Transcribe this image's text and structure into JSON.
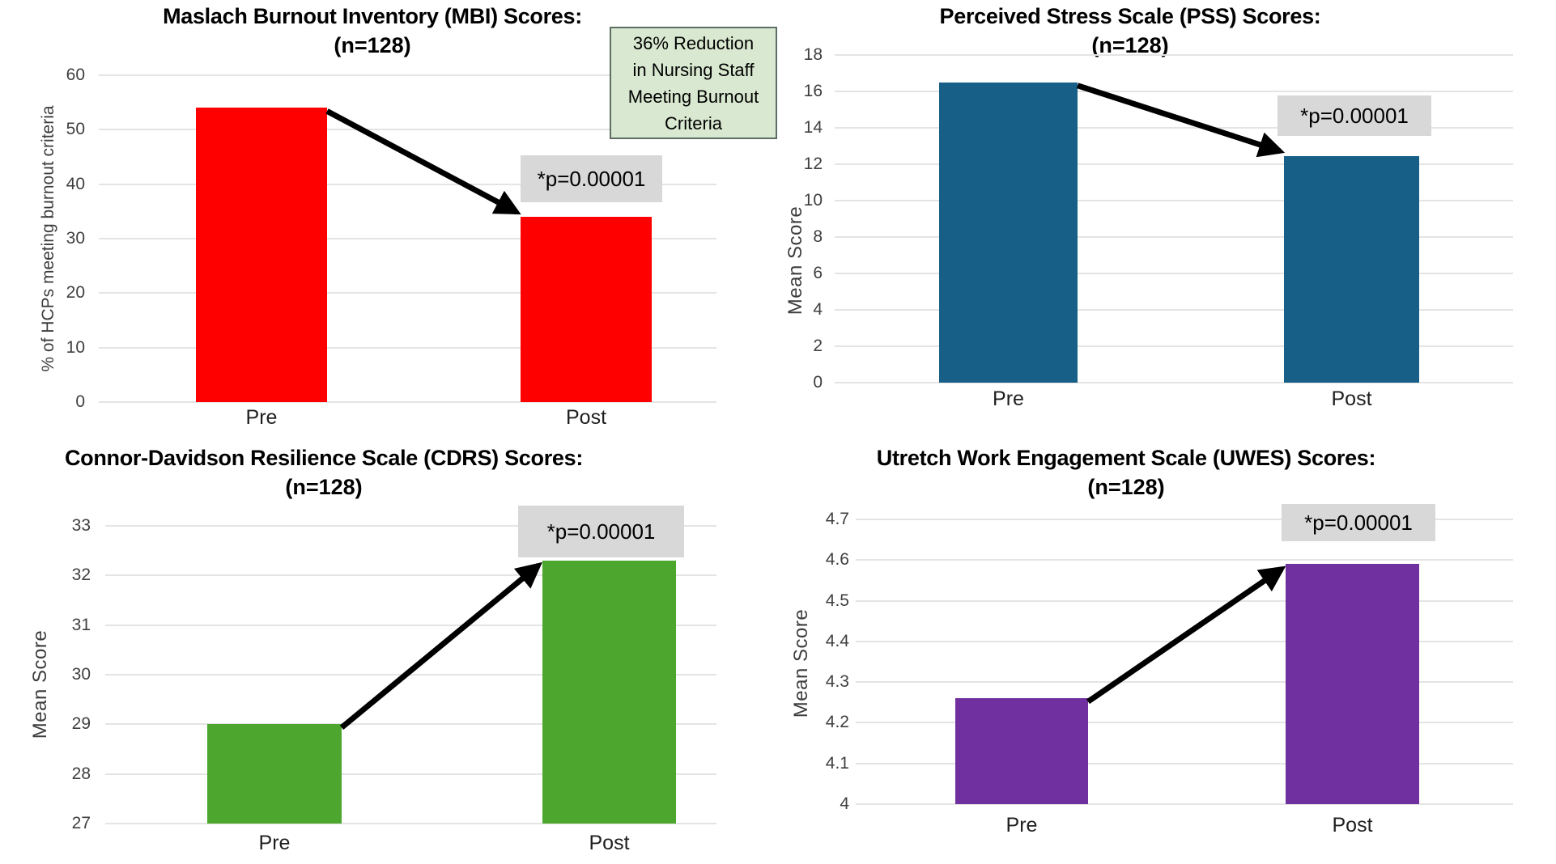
{
  "style": {
    "background": "#ffffff",
    "gridline_color": "#e4e4e4",
    "tick_color": "#3f3f3f",
    "category_color": "#1f1f1f",
    "arrow_color": "#000000",
    "p_box_bg": "#d8d8d8",
    "annotation_bg": "#d9e8d0",
    "annotation_border": "#5c6e64"
  },
  "chart_data": [
    {
      "id": "mbi",
      "type": "bar",
      "title": "Maslach Burnout Inventory (MBI) Scores:",
      "subtitle": "(n=128)",
      "ylabel": "% of HCPs meeting burnout criteria",
      "categories": [
        "Pre",
        "Post"
      ],
      "values": [
        54,
        34
      ],
      "ylim": [
        0,
        60
      ],
      "yticks": [
        60,
        50,
        40,
        30,
        20,
        10,
        0
      ],
      "ytick_labels": [
        "60",
        "50",
        "40",
        "30",
        "20",
        "10",
        "0"
      ],
      "bar_color": "#ff0000",
      "p_label": "*p=0.00001",
      "annotation_lines": [
        "36% Reduction",
        "in Nursing Staff",
        "Meeting Burnout",
        "Criteria"
      ],
      "grid": true,
      "legend": "none",
      "trend": "decrease"
    },
    {
      "id": "pss",
      "type": "bar",
      "title": "Perceived Stress Scale (PSS) Scores:",
      "subtitle": "(n=128)",
      "ylabel": "Mean Score",
      "categories": [
        "Pre",
        "Post"
      ],
      "values": [
        16.5,
        12.45
      ],
      "ylim": [
        0,
        18
      ],
      "yticks": [
        18,
        16,
        14,
        12,
        10,
        8,
        6,
        4,
        2,
        0
      ],
      "ytick_labels": [
        "18",
        "16",
        "14",
        "12",
        "10",
        "8",
        "6",
        "4",
        "2",
        "0"
      ],
      "bar_color": "#175f87",
      "p_label": "*p=0.00001",
      "grid": true,
      "legend": "none",
      "trend": "decrease"
    },
    {
      "id": "cdrs",
      "type": "bar",
      "title": "Connor-Davidson Resilience Scale (CDRS) Scores:",
      "subtitle": "(n=128)",
      "ylabel": "Mean Score",
      "categories": [
        "Pre",
        "Post"
      ],
      "values": [
        29,
        32.3
      ],
      "ylim": [
        27,
        33
      ],
      "yticks": [
        33,
        32,
        31,
        30,
        29,
        28,
        27
      ],
      "ytick_labels": [
        "33",
        "32",
        "31",
        "30",
        "29",
        "28",
        "27"
      ],
      "bar_color": "#4da72f",
      "p_label": "*p=0.00001",
      "grid": true,
      "legend": "none",
      "trend": "increase"
    },
    {
      "id": "uwes",
      "type": "bar",
      "title": "Utretch Work Engagement Scale (UWES) Scores:",
      "subtitle": "(n=128)",
      "ylabel": "Mean Score",
      "categories": [
        "Pre",
        "Post"
      ],
      "values": [
        4.26,
        4.59
      ],
      "ylim": [
        4,
        4.7
      ],
      "yticks": [
        4.7,
        4.6,
        4.5,
        4.4,
        4.3,
        4.2,
        4.1,
        4
      ],
      "ytick_labels": [
        "4.7",
        "4.6",
        "4.5",
        "4.4",
        "4.3",
        "4.2",
        "4.1",
        "4"
      ],
      "bar_color": "#7030a0",
      "p_label": "*p=0.00001",
      "grid": true,
      "legend": "none",
      "trend": "increase"
    }
  ]
}
